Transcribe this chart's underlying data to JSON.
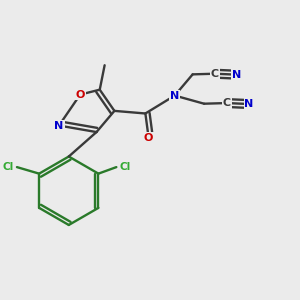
{
  "bg_color": "#ebebeb",
  "colors": {
    "bond": "#3a3a3a",
    "N": "#0000cc",
    "O": "#cc0000",
    "Cl": "#33aa33",
    "C": "#3a3a3a",
    "ph_bond": "#2a7a2a"
  },
  "figsize": [
    3.0,
    3.0
  ],
  "dpi": 100
}
